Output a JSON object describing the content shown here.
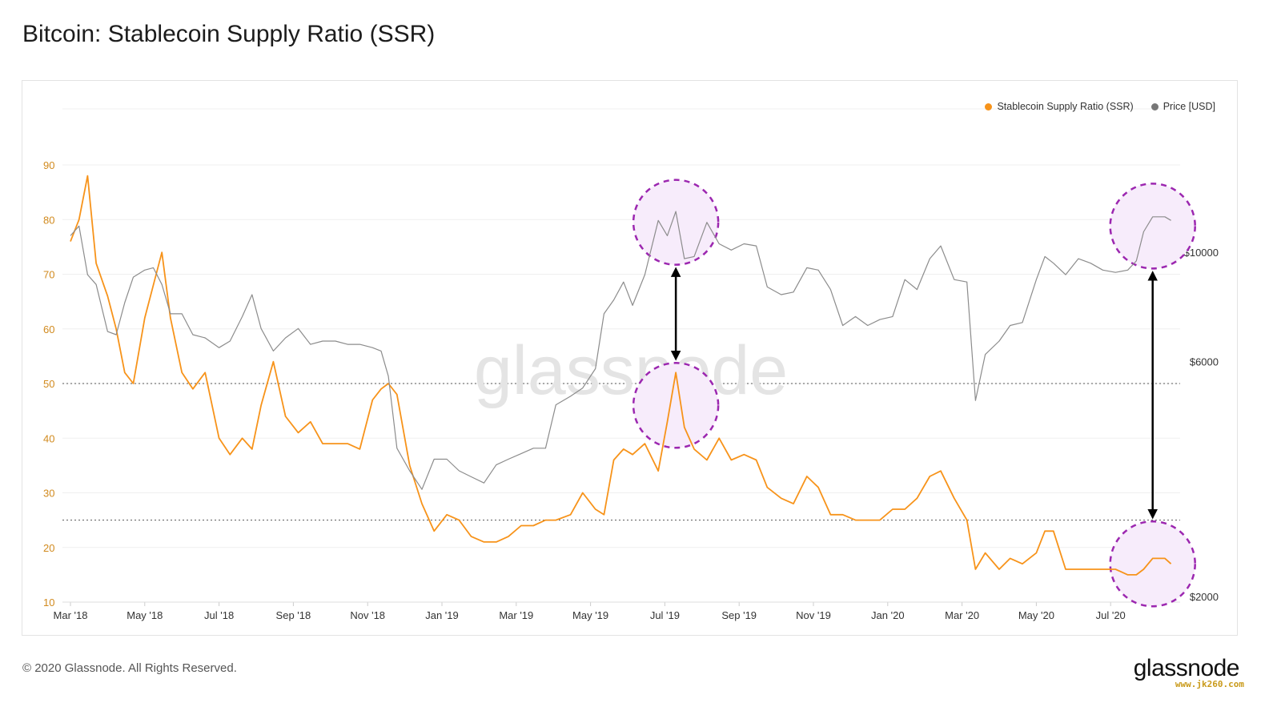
{
  "page": {
    "title": "Bitcoin: Stablecoin Supply Ratio (SSR)",
    "copyright": "© 2020 Glassnode. All Rights Reserved.",
    "logo": "glassnode",
    "watermark": "glassnode",
    "url_stamp": "www.jk260.com"
  },
  "colors": {
    "ssr": "#f7931a",
    "price": "#8c8c8c",
    "annotation": "#9c27b0",
    "annotation_fill": "#f7ecfb",
    "arrow": "#000000",
    "axis_text_left": "#d18a1e",
    "axis_text_right": "#333333"
  },
  "legend": [
    {
      "label": "Stablecoin Supply Ratio (SSR)",
      "color": "#f7931a"
    },
    {
      "label": "Price [USD]",
      "color": "#777777"
    }
  ],
  "chart_data": {
    "type": "line",
    "title": "Bitcoin: Stablecoin Supply Ratio (SSR)",
    "x_ticks": [
      "Mar '18",
      "May '18",
      "Jul '18",
      "Sep '18",
      "Nov '18",
      "Jan '19",
      "Mar '19",
      "May '19",
      "Jul '19",
      "Sep '19",
      "Nov '19",
      "Jan '20",
      "Mar '20",
      "May '20",
      "Jul '20"
    ],
    "y_left": {
      "ticks": [
        10,
        20,
        30,
        40,
        50,
        60,
        70,
        80,
        90
      ],
      "range": [
        10,
        90
      ]
    },
    "y_right": {
      "ticks": [
        "$2000",
        "$6000",
        "$10000"
      ],
      "scale": "log",
      "tick_values": [
        2000,
        6000,
        10000
      ]
    },
    "grid": true,
    "legend_position": "top-right",
    "series": [
      {
        "name": "Stablecoin Supply Ratio (SSR)",
        "axis": "left",
        "x": [
          "2018-03-01",
          "2018-03-08",
          "2018-03-15",
          "2018-03-22",
          "2018-04-01",
          "2018-04-08",
          "2018-04-15",
          "2018-04-22",
          "2018-05-01",
          "2018-05-08",
          "2018-05-15",
          "2018-05-22",
          "2018-06-01",
          "2018-06-10",
          "2018-06-20",
          "2018-07-01",
          "2018-07-10",
          "2018-07-20",
          "2018-07-28",
          "2018-08-05",
          "2018-08-15",
          "2018-08-25",
          "2018-09-05",
          "2018-09-15",
          "2018-09-25",
          "2018-10-05",
          "2018-10-15",
          "2018-10-25",
          "2018-11-05",
          "2018-11-12",
          "2018-11-18",
          "2018-11-25",
          "2018-12-05",
          "2018-12-15",
          "2018-12-25",
          "2019-01-05",
          "2019-01-15",
          "2019-01-25",
          "2019-02-05",
          "2019-02-15",
          "2019-02-25",
          "2019-03-05",
          "2019-03-15",
          "2019-03-25",
          "2019-04-03",
          "2019-04-15",
          "2019-04-25",
          "2019-05-05",
          "2019-05-12",
          "2019-05-20",
          "2019-05-28",
          "2019-06-05",
          "2019-06-15",
          "2019-06-26",
          "2019-07-03",
          "2019-07-10",
          "2019-07-17",
          "2019-07-25",
          "2019-08-05",
          "2019-08-15",
          "2019-08-25",
          "2019-09-05",
          "2019-09-15",
          "2019-09-24",
          "2019-10-05",
          "2019-10-15",
          "2019-10-26",
          "2019-11-05",
          "2019-11-15",
          "2019-11-25",
          "2019-12-05",
          "2019-12-15",
          "2019-12-25",
          "2020-01-05",
          "2020-01-15",
          "2020-01-25",
          "2020-02-05",
          "2020-02-14",
          "2020-02-25",
          "2020-03-05",
          "2020-03-12",
          "2020-03-20",
          "2020-04-01",
          "2020-04-10",
          "2020-04-20",
          "2020-05-01",
          "2020-05-08",
          "2020-05-15",
          "2020-05-25",
          "2020-06-05",
          "2020-06-15",
          "2020-06-25",
          "2020-07-05",
          "2020-07-15",
          "2020-07-22",
          "2020-07-28",
          "2020-08-05",
          "2020-08-15",
          "2020-08-20"
        ],
        "values": [
          76,
          80,
          88,
          72,
          66,
          60,
          52,
          50,
          62,
          68,
          74,
          62,
          52,
          49,
          52,
          40,
          37,
          40,
          38,
          46,
          54,
          44,
          41,
          43,
          39,
          39,
          39,
          38,
          47,
          49,
          50,
          48,
          35,
          28,
          23,
          26,
          25,
          22,
          21,
          21,
          22,
          24,
          24,
          25,
          25,
          26,
          30,
          27,
          26,
          36,
          38,
          37,
          39,
          34,
          43,
          52,
          42,
          38,
          36,
          40,
          36,
          37,
          36,
          31,
          29,
          28,
          33,
          31,
          26,
          26,
          25,
          25,
          25,
          27,
          27,
          29,
          33,
          34,
          29,
          25,
          16,
          19,
          16,
          18,
          17,
          19,
          23,
          23,
          16,
          16,
          16,
          16,
          16,
          15,
          15,
          16,
          18,
          18,
          17
        ]
      },
      {
        "name": "Price [USD]",
        "axis": "right",
        "scale": "log",
        "x": [
          "2018-03-01",
          "2018-03-08",
          "2018-03-15",
          "2018-03-22",
          "2018-04-01",
          "2018-04-08",
          "2018-04-15",
          "2018-04-22",
          "2018-05-01",
          "2018-05-08",
          "2018-05-15",
          "2018-05-22",
          "2018-06-01",
          "2018-06-10",
          "2018-06-20",
          "2018-07-01",
          "2018-07-10",
          "2018-07-20",
          "2018-07-28",
          "2018-08-05",
          "2018-08-15",
          "2018-08-25",
          "2018-09-05",
          "2018-09-15",
          "2018-09-25",
          "2018-10-05",
          "2018-10-15",
          "2018-10-25",
          "2018-11-05",
          "2018-11-12",
          "2018-11-18",
          "2018-11-25",
          "2018-12-05",
          "2018-12-15",
          "2018-12-25",
          "2019-01-05",
          "2019-01-15",
          "2019-01-25",
          "2019-02-05",
          "2019-02-15",
          "2019-02-25",
          "2019-03-05",
          "2019-03-15",
          "2019-03-25",
          "2019-04-03",
          "2019-04-15",
          "2019-04-25",
          "2019-05-05",
          "2019-05-12",
          "2019-05-20",
          "2019-05-28",
          "2019-06-05",
          "2019-06-15",
          "2019-06-26",
          "2019-07-03",
          "2019-07-10",
          "2019-07-17",
          "2019-07-25",
          "2019-08-05",
          "2019-08-15",
          "2019-08-25",
          "2019-09-05",
          "2019-09-15",
          "2019-09-24",
          "2019-10-05",
          "2019-10-15",
          "2019-10-26",
          "2019-11-05",
          "2019-11-15",
          "2019-11-25",
          "2019-12-05",
          "2019-12-15",
          "2019-12-25",
          "2020-01-05",
          "2020-01-15",
          "2020-01-25",
          "2020-02-05",
          "2020-02-14",
          "2020-02-25",
          "2020-03-05",
          "2020-03-12",
          "2020-03-20",
          "2020-04-01",
          "2020-04-10",
          "2020-04-20",
          "2020-05-01",
          "2020-05-08",
          "2020-05-15",
          "2020-05-25",
          "2020-06-05",
          "2020-06-15",
          "2020-06-25",
          "2020-07-05",
          "2020-07-15",
          "2020-07-22",
          "2020-07-28",
          "2020-08-05",
          "2020-08-15",
          "2020-08-20"
        ],
        "values": [
          10800,
          11300,
          9000,
          8600,
          6900,
          6800,
          7900,
          8900,
          9200,
          9300,
          8600,
          7500,
          7500,
          6800,
          6700,
          6400,
          6600,
          7400,
          8200,
          7000,
          6300,
          6700,
          7000,
          6500,
          6600,
          6600,
          6500,
          6500,
          6400,
          6300,
          5600,
          4000,
          3600,
          3300,
          3800,
          3800,
          3600,
          3500,
          3400,
          3700,
          3800,
          3900,
          4000,
          4000,
          4900,
          5100,
          5300,
          5800,
          7500,
          8000,
          8700,
          7800,
          9000,
          11600,
          10800,
          12100,
          9700,
          9800,
          11500,
          10400,
          10100,
          10400,
          10300,
          8500,
          8200,
          8300,
          9300,
          9200,
          8400,
          7100,
          7400,
          7100,
          7300,
          7400,
          8800,
          8400,
          9700,
          10300,
          8800,
          8700,
          5000,
          6200,
          6600,
          7100,
          7200,
          8800,
          9800,
          9500,
          9000,
          9700,
          9500,
          9200,
          9100,
          9200,
          9600,
          11000,
          11800,
          11800,
          11600
        ]
      }
    ],
    "reference_lines": [
      {
        "axis": "left",
        "value": 50,
        "style": "dotted"
      },
      {
        "axis": "left",
        "value": 25,
        "style": "dotted"
      }
    ],
    "annotations": [
      {
        "type": "circle",
        "series": "Price [USD]",
        "x": "2019-07-10",
        "y": 11500
      },
      {
        "type": "circle",
        "series": "Stablecoin Supply Ratio (SSR)",
        "x": "2019-07-10",
        "y": 46
      },
      {
        "type": "circle",
        "series": "Price [USD]",
        "x": "2020-08-05",
        "y": 11300
      },
      {
        "type": "circle",
        "series": "Stablecoin Supply Ratio (SSR)",
        "x": "2020-08-05",
        "y": 17
      },
      {
        "type": "double-arrow",
        "x": "2019-07-10",
        "from_series": "Price [USD]",
        "to_series": "Stablecoin Supply Ratio (SSR)"
      },
      {
        "type": "double-arrow",
        "x": "2020-08-05",
        "from_series": "Price [USD]",
        "to_series": "Stablecoin Supply Ratio (SSR)"
      }
    ]
  }
}
